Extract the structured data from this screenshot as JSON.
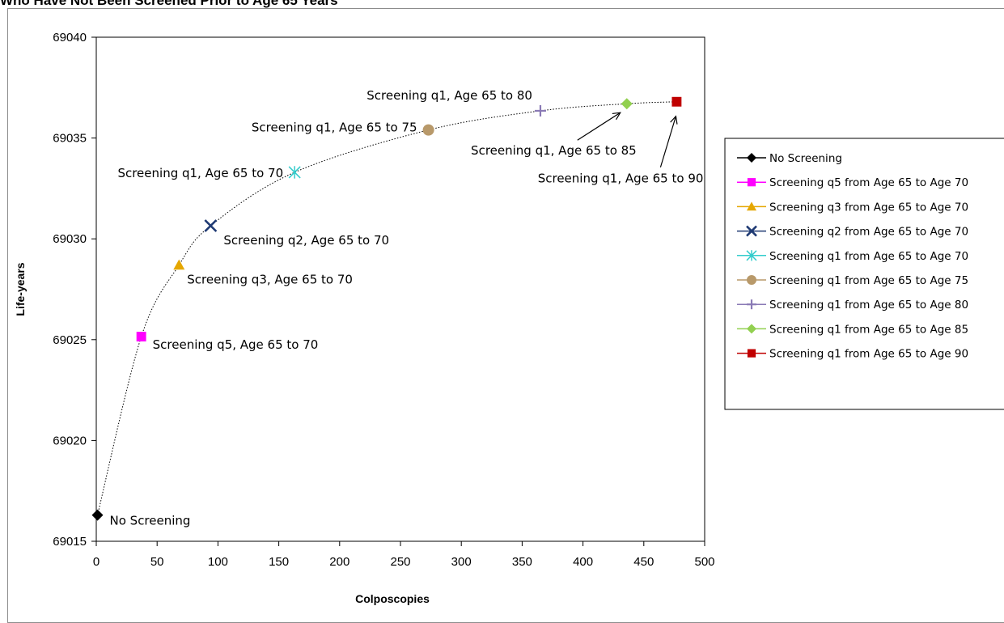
{
  "title": "Who Have Not Been Screened Prior to Age 65 Years",
  "chart_data": {
    "type": "scatter",
    "xlabel": "Colposcopies",
    "ylabel": "Life-years",
    "xlim": [
      0,
      500
    ],
    "ylim": [
      69015,
      69040
    ],
    "xticks": [
      0,
      50,
      100,
      150,
      200,
      250,
      300,
      350,
      400,
      450,
      500
    ],
    "yticks": [
      69015,
      69020,
      69025,
      69030,
      69035,
      69040
    ],
    "grid": false,
    "connector_line": "dotted",
    "legend_position": "right",
    "series": [
      {
        "name": "No Screening",
        "x": 1,
        "y": 69016.3,
        "marker": "diamond",
        "color": "#000000",
        "annotation": "No Screening"
      },
      {
        "name": "Screening q5 from Age 65 to Age 70",
        "x": 37,
        "y": 69025.15,
        "marker": "square",
        "color": "#ff00ff",
        "annotation": "Screening q5, Age 65 to 70"
      },
      {
        "name": "Screening q3 from Age 65 to Age 70",
        "x": 68,
        "y": 69028.7,
        "marker": "triangle",
        "color": "#e5a700",
        "annotation": "Screening q3, Age 65 to 70"
      },
      {
        "name": "Screening q2 from Age 65 to Age 70",
        "x": 94,
        "y": 69030.65,
        "marker": "x",
        "color": "#1f3a73",
        "annotation": "Screening q2, Age 65 to 70"
      },
      {
        "name": "Screening q1 from Age 65 to Age 70",
        "x": 163,
        "y": 69033.3,
        "marker": "star",
        "color": "#33cccc",
        "annotation": "Screening q1, Age 65 to 70"
      },
      {
        "name": "Screening q1 from Age 65 to Age 75",
        "x": 273,
        "y": 69035.4,
        "marker": "circle",
        "color": "#b8996a",
        "annotation": "Screening q1, Age 65 to 75"
      },
      {
        "name": "Screening q1 from Age 65 to Age 80",
        "x": 365,
        "y": 69036.35,
        "marker": "plus",
        "color": "#8a7ab5",
        "annotation": "Screening q1, Age 65 to 80"
      },
      {
        "name": "Screening q1 from Age 65 to Age 85",
        "x": 436,
        "y": 69036.7,
        "marker": "diamond",
        "color": "#92d050",
        "annotation": "Screening q1, Age 65 to 85"
      },
      {
        "name": "Screening q1 from Age 65 to Age 90",
        "x": 477,
        "y": 69036.8,
        "marker": "square",
        "color": "#c00000",
        "annotation": "Screening q1, Age 65 to 90"
      }
    ]
  }
}
